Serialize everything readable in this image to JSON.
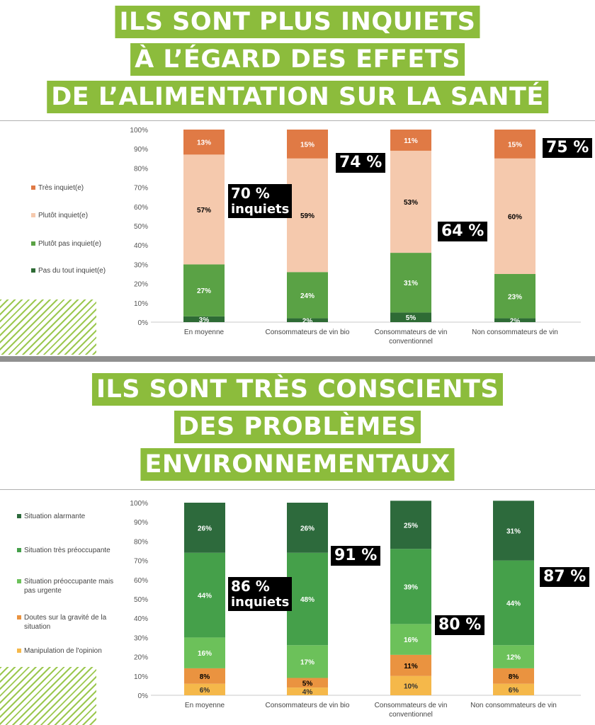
{
  "section1": {
    "title_lines": [
      "ILS SONT PLUS INQUIETS",
      "À L’ÉGARD DES EFFETS",
      "DE L’ALIMENTATION SUR LA SANTÉ"
    ],
    "callouts": [
      {
        "value": "70 %",
        "sub": "inquiets"
      },
      {
        "value": "74 %"
      },
      {
        "value": "64 %"
      },
      {
        "value": "75 %"
      }
    ]
  },
  "section2": {
    "title_lines": [
      "ILS SONT TRÈS CONSCIENTS",
      "DES PROBLÈMES",
      "ENVIRONNEMENTAUX"
    ],
    "callouts": [
      {
        "value": "86 %",
        "sub": "inquiets"
      },
      {
        "value": "91 %"
      },
      {
        "value": "80 %"
      },
      {
        "value": "87 %"
      }
    ]
  },
  "chart_data": [
    {
      "type": "bar",
      "stacked": true,
      "categories": [
        "En moyenne",
        "Consommateurs de vin bio",
        "Consommateurs de vin conventionnel",
        "Non consommateurs de vin"
      ],
      "y_ticks": [
        "0%",
        "10%",
        "20%",
        "30%",
        "40%",
        "50%",
        "60%",
        "70%",
        "80%",
        "90%",
        "100%"
      ],
      "ylim": [
        0,
        100
      ],
      "series": [
        {
          "name": "Pas du tout inquiet(e)",
          "color": "#2e6b35",
          "values": [
            3,
            2,
            5,
            2
          ],
          "labels": [
            "3%",
            "2%",
            "5%",
            "2%"
          ]
        },
        {
          "name": "Plutôt pas inquiet(e)",
          "color": "#5aa245",
          "values": [
            27,
            24,
            31,
            23
          ],
          "labels": [
            "27%",
            "24%",
            "31%",
            "23%"
          ]
        },
        {
          "name": "Plutôt inquiet(e)",
          "color": "#f5c9ad",
          "values": [
            57,
            59,
            53,
            60
          ],
          "labels": [
            "57%",
            "59%",
            "53%",
            "60%"
          ]
        },
        {
          "name": "Très inquiet(e)",
          "color": "#e07a45",
          "values": [
            13,
            15,
            11,
            15
          ],
          "labels": [
            "13%",
            "15%",
            "11%",
            "15%"
          ]
        }
      ],
      "legend_order": [
        "Très inquiet(e)",
        "Plutôt inquiet(e)",
        "Plutôt pas inquiet(e)",
        "Pas du tout inquiet(e)"
      ]
    },
    {
      "type": "bar",
      "stacked": true,
      "categories": [
        "En moyenne",
        "Consommateurs de vin bio",
        "Consommateurs de vin conventionnel",
        "Non consommateurs de vin"
      ],
      "y_ticks": [
        "0%",
        "10%",
        "20%",
        "30%",
        "40%",
        "50%",
        "60%",
        "70%",
        "80%",
        "90%",
        "100%"
      ],
      "ylim": [
        0,
        100
      ],
      "series": [
        {
          "name": "Manipulation de l'opinion",
          "color": "#f5b84a",
          "values": [
            6,
            4,
            10,
            6
          ],
          "labels": [
            "6%",
            "4%",
            "10%",
            "6%"
          ]
        },
        {
          "name": "Doutes sur la gravité de la situation",
          "color": "#ea9340",
          "values": [
            8,
            5,
            11,
            8
          ],
          "labels": [
            "8%",
            "5%",
            "11%",
            "8%"
          ]
        },
        {
          "name": "Situation préoccupante mais pas urgente",
          "color": "#6cc15a",
          "values": [
            16,
            17,
            16,
            12
          ],
          "labels": [
            "16%",
            "17%",
            "16%",
            "12%"
          ]
        },
        {
          "name": "Situation très préoccupante",
          "color": "#45a04a",
          "values": [
            44,
            48,
            39,
            44
          ],
          "labels": [
            "44%",
            "48%",
            "39%",
            "44%"
          ]
        },
        {
          "name": "Situation alarmante",
          "color": "#2d6a3c",
          "values": [
            26,
            26,
            25,
            31
          ],
          "labels": [
            "26%",
            "26%",
            "25%",
            "31%"
          ]
        }
      ],
      "legend_order": [
        "Situation alarmante",
        "Situation très préoccupante",
        "Situation préoccupante mais pas urgente",
        "Doutes sur la gravité de la situation",
        "Manipulation de l'opinion"
      ]
    }
  ]
}
